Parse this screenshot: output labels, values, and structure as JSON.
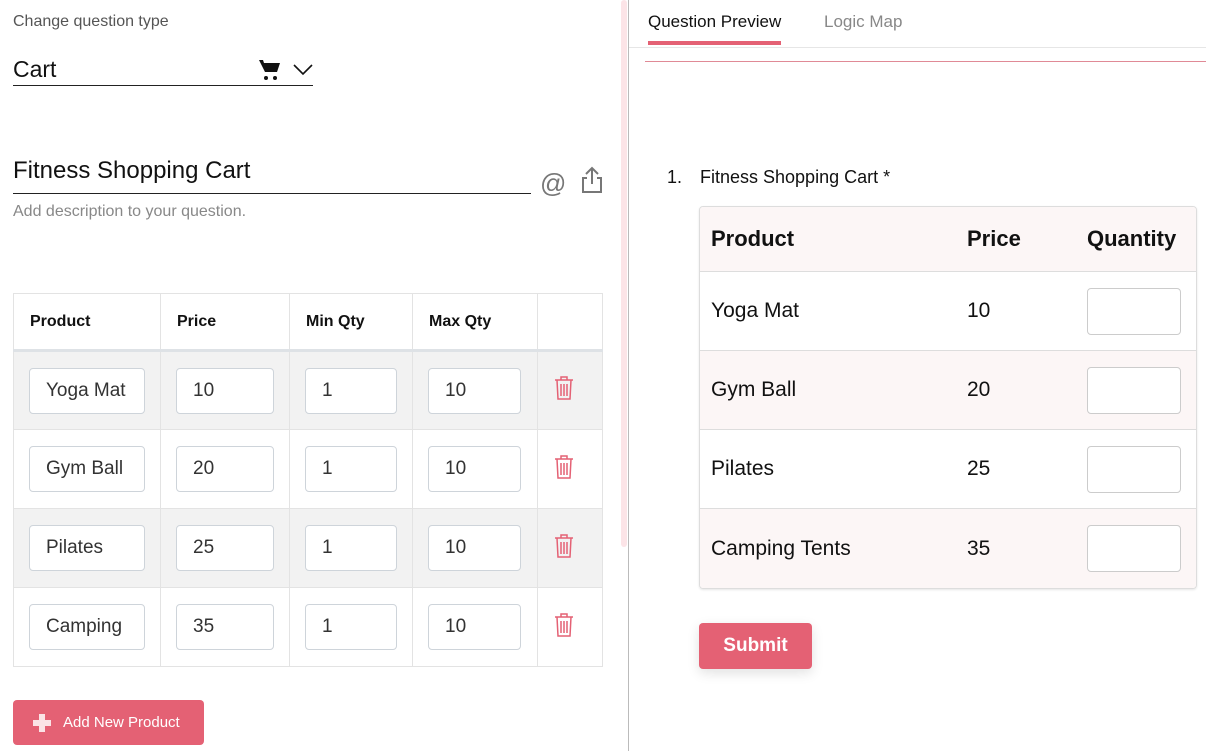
{
  "editor": {
    "change_type_label": "Change question type",
    "question_type": "Cart",
    "question_title": "Fitness Shopping Cart",
    "description_placeholder": "Add description to your question.",
    "columns": [
      "Product",
      "Price",
      "Min Qty",
      "Max Qty",
      ""
    ],
    "products": [
      {
        "name": "Yoga Mat",
        "price": "10",
        "min": "1",
        "max": "10"
      },
      {
        "name": "Gym Ball",
        "price": "20",
        "min": "1",
        "max": "10"
      },
      {
        "name": "Pilates",
        "price": "25",
        "min": "1",
        "max": "10"
      },
      {
        "name": "Camping",
        "price": "35",
        "min": "1",
        "max": "10"
      }
    ],
    "add_button": "Add New Product"
  },
  "preview": {
    "tabs": [
      {
        "label": "Question Preview",
        "active": true
      },
      {
        "label": "Logic Map",
        "active": false
      }
    ],
    "question_number": "1.",
    "question_title": "Fitness Shopping Cart *",
    "columns": [
      "Product",
      "Price",
      "Quantity"
    ],
    "rows": [
      {
        "product": "Yoga Mat",
        "price": "10",
        "quantity": ""
      },
      {
        "product": "Gym Ball",
        "price": "20",
        "quantity": ""
      },
      {
        "product": "Pilates",
        "price": "25",
        "quantity": ""
      },
      {
        "product": "Camping Tents",
        "price": "35",
        "quantity": ""
      }
    ],
    "submit": "Submit"
  },
  "colors": {
    "accent": "#e46174"
  }
}
